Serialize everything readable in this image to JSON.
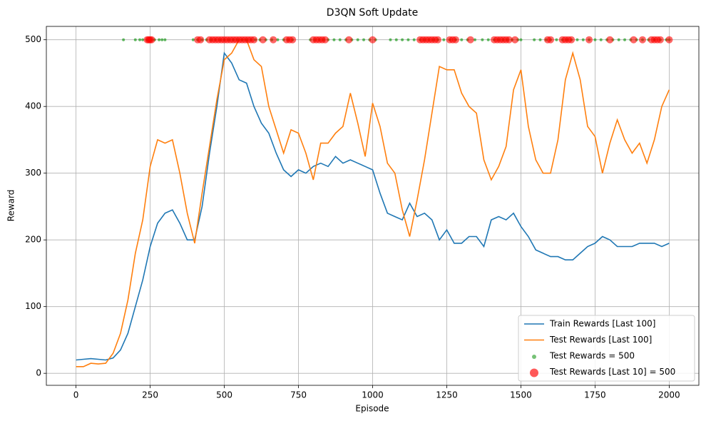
{
  "chart_data": {
    "type": "line",
    "title": "D3QN Soft Update",
    "xlabel": "Episode",
    "ylabel": "Reward",
    "x": [
      0,
      25,
      50,
      75,
      100,
      125,
      150,
      175,
      200,
      225,
      250,
      275,
      300,
      325,
      350,
      375,
      400,
      425,
      450,
      475,
      500,
      525,
      550,
      575,
      600,
      625,
      650,
      675,
      700,
      725,
      750,
      775,
      800,
      825,
      850,
      875,
      900,
      925,
      950,
      975,
      1000,
      1025,
      1050,
      1075,
      1100,
      1125,
      1150,
      1175,
      1200,
      1225,
      1250,
      1275,
      1300,
      1325,
      1350,
      1375,
      1400,
      1425,
      1450,
      1475,
      1500,
      1525,
      1550,
      1575,
      1600,
      1625,
      1650,
      1675,
      1700,
      1725,
      1750,
      1775,
      1800,
      1825,
      1850,
      1875,
      1900,
      1925,
      1950,
      1975,
      2000
    ],
    "series": [
      {
        "name": "Train Rewards [Last 100]",
        "type": "line",
        "color": "#1f77b4",
        "values": [
          20,
          21,
          22,
          21,
          20,
          23,
          35,
          60,
          100,
          140,
          190,
          225,
          240,
          245,
          225,
          200,
          200,
          250,
          330,
          400,
          480,
          465,
          440,
          435,
          400,
          375,
          360,
          330,
          305,
          295,
          305,
          300,
          310,
          315,
          310,
          325,
          315,
          320,
          315,
          310,
          305,
          270,
          240,
          235,
          230,
          255,
          235,
          240,
          230,
          200,
          215,
          195,
          195,
          205,
          205,
          190,
          230,
          235,
          230,
          240,
          220,
          205,
          185,
          180,
          175,
          175,
          170,
          170,
          180,
          190,
          195,
          205,
          200,
          190,
          190,
          190,
          195,
          195,
          195,
          190,
          195
        ]
      },
      {
        "name": "Test Rewards [Last 100]",
        "type": "line",
        "color": "#ff7f0e",
        "values": [
          10,
          10,
          15,
          14,
          15,
          30,
          60,
          110,
          180,
          230,
          310,
          350,
          345,
          350,
          300,
          240,
          195,
          270,
          340,
          410,
          470,
          480,
          500,
          500,
          470,
          460,
          400,
          365,
          330,
          365,
          360,
          330,
          290,
          345,
          345,
          360,
          370,
          420,
          375,
          325,
          405,
          370,
          315,
          300,
          245,
          205,
          260,
          320,
          390,
          460,
          455,
          455,
          420,
          400,
          390,
          320,
          290,
          310,
          340,
          425,
          455,
          370,
          320,
          300,
          300,
          350,
          440,
          480,
          440,
          370,
          355,
          300,
          345,
          380,
          350,
          330,
          345,
          315,
          350,
          400,
          425
        ]
      },
      {
        "name": "Test Rewards = 500",
        "type": "scatter",
        "color": "#2ca02c",
        "size": 2,
        "x": [
          160,
          200,
          215,
          225,
          240,
          255,
          265,
          280,
          290,
          300,
          395,
          410,
          425,
          440,
          455,
          470,
          485,
          500,
          515,
          530,
          545,
          560,
          575,
          590,
          605,
          620,
          640,
          660,
          680,
          700,
          715,
          730,
          790,
          805,
          820,
          835,
          850,
          870,
          890,
          910,
          930,
          950,
          970,
          990,
          1010,
          1060,
          1080,
          1100,
          1120,
          1140,
          1160,
          1175,
          1190,
          1205,
          1220,
          1240,
          1260,
          1280,
          1300,
          1320,
          1345,
          1370,
          1390,
          1410,
          1425,
          1440,
          1455,
          1470,
          1490,
          1500,
          1545,
          1565,
          1585,
          1600,
          1620,
          1640,
          1655,
          1670,
          1690,
          1710,
          1730,
          1750,
          1770,
          1790,
          1810,
          1830,
          1850,
          1870,
          1890,
          1910,
          1930,
          1950,
          1970,
          1990,
          2000
        ],
        "values": [
          500,
          500,
          500,
          500,
          500,
          500,
          500,
          500,
          500,
          500,
          500,
          500,
          500,
          500,
          500,
          500,
          500,
          500,
          500,
          500,
          500,
          500,
          500,
          500,
          500,
          500,
          500,
          500,
          500,
          500,
          500,
          500,
          500,
          500,
          500,
          500,
          500,
          500,
          500,
          500,
          500,
          500,
          500,
          500,
          500,
          500,
          500,
          500,
          500,
          500,
          500,
          500,
          500,
          500,
          500,
          500,
          500,
          500,
          500,
          500,
          500,
          500,
          500,
          500,
          500,
          500,
          500,
          500,
          500,
          500,
          500,
          500,
          500,
          500,
          500,
          500,
          500,
          500,
          500,
          500,
          500,
          500,
          500,
          500,
          500,
          500,
          500,
          500,
          500,
          500,
          500,
          500,
          500,
          500,
          500
        ]
      },
      {
        "name": "Test Rewards [Last 10] = 500",
        "type": "scatter",
        "color": "#ff0000",
        "size": 5,
        "x": [
          240,
          245,
          250,
          255,
          410,
          420,
          450,
          460,
          470,
          480,
          490,
          500,
          510,
          520,
          530,
          540,
          550,
          560,
          570,
          580,
          590,
          600,
          630,
          665,
          710,
          720,
          730,
          800,
          810,
          820,
          830,
          840,
          920,
          1000,
          1160,
          1170,
          1180,
          1190,
          1200,
          1210,
          1220,
          1260,
          1270,
          1280,
          1330,
          1410,
          1420,
          1430,
          1440,
          1450,
          1460,
          1480,
          1590,
          1600,
          1640,
          1650,
          1660,
          1670,
          1730,
          1800,
          1880,
          1910,
          1940,
          1950,
          1960,
          1970,
          2000
        ],
        "values": [
          500,
          500,
          500,
          500,
          500,
          500,
          500,
          500,
          500,
          500,
          500,
          500,
          500,
          500,
          500,
          500,
          500,
          500,
          500,
          500,
          500,
          500,
          500,
          500,
          500,
          500,
          500,
          500,
          500,
          500,
          500,
          500,
          500,
          500,
          500,
          500,
          500,
          500,
          500,
          500,
          500,
          500,
          500,
          500,
          500,
          500,
          500,
          500,
          500,
          500,
          500,
          500,
          500,
          500,
          500,
          500,
          500,
          500,
          500,
          500,
          500,
          500,
          500,
          500,
          500,
          500,
          500
        ]
      }
    ],
    "xlim": [
      -100,
      2100
    ],
    "ylim": [
      -18,
      520
    ],
    "xticks": [
      0,
      250,
      500,
      750,
      1000,
      1250,
      1500,
      1750,
      2000
    ],
    "yticks": [
      0,
      100,
      200,
      300,
      400,
      500
    ],
    "grid": true,
    "legend": "lower right"
  }
}
